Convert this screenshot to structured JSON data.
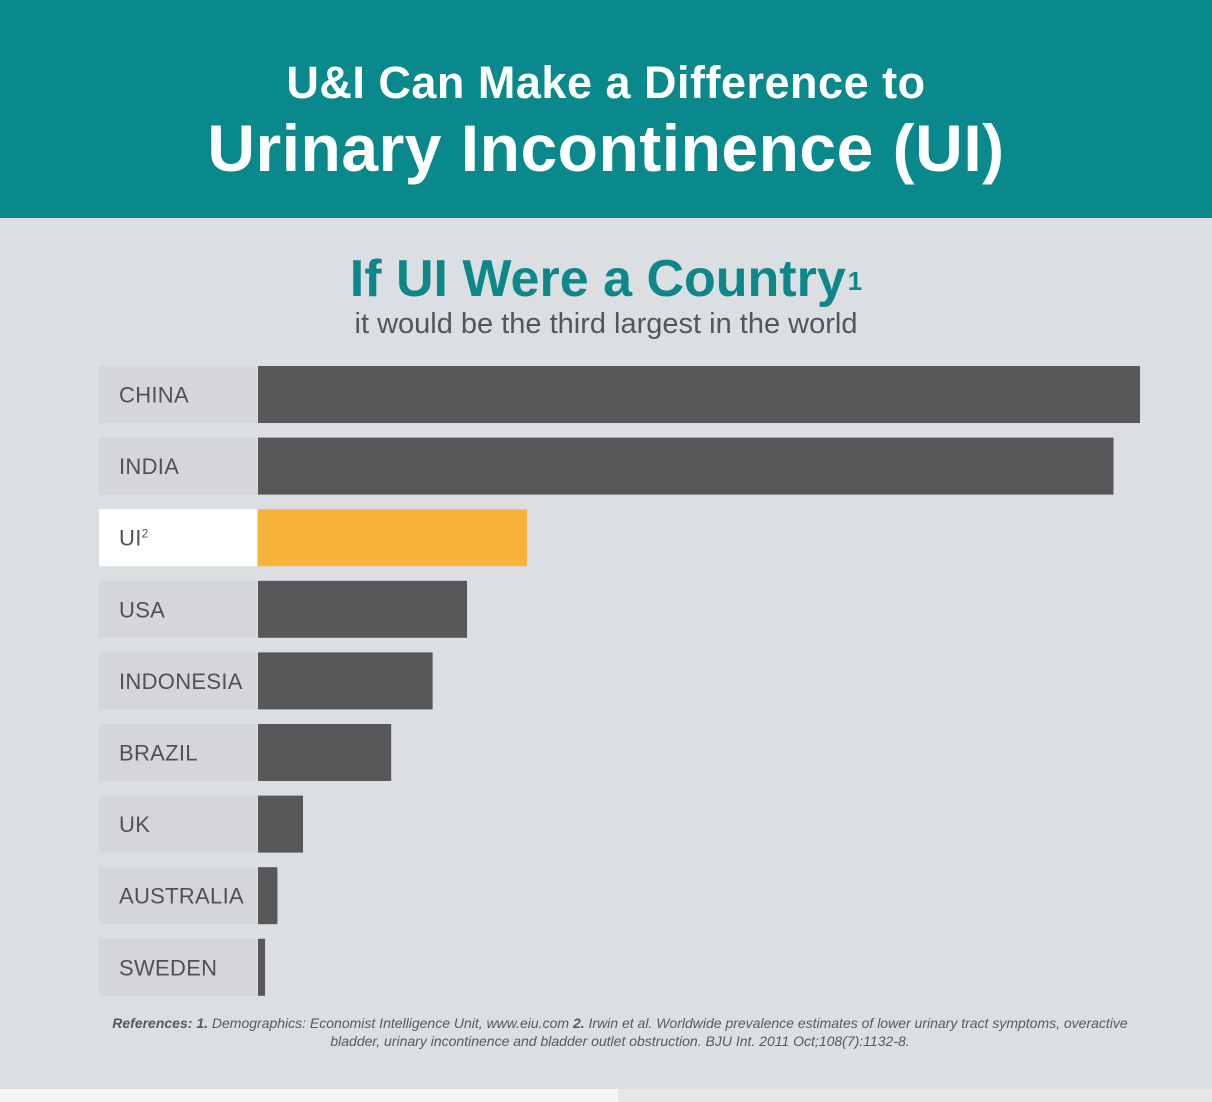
{
  "header": {
    "line1": "U&I Can Make a Difference to",
    "line2": "Urinary Incontinence (UI)"
  },
  "chart_data": {
    "type": "bar",
    "orientation": "horizontal",
    "title": "If UI Were a Country",
    "title_ref": "1",
    "subtitle": "it would be the third largest in the world",
    "categories": [
      {
        "label": "CHINA",
        "ref": ""
      },
      {
        "label": "INDIA",
        "ref": ""
      },
      {
        "label": "UI",
        "ref": "2"
      },
      {
        "label": "USA",
        "ref": ""
      },
      {
        "label": "INDONESIA",
        "ref": ""
      },
      {
        "label": "BRAZIL",
        "ref": ""
      },
      {
        "label": "UK",
        "ref": ""
      },
      {
        "label": "AUSTRALIA",
        "ref": ""
      },
      {
        "label": "SWEDEN",
        "ref": ""
      }
    ],
    "values": [
      1.0,
      0.97,
      0.305,
      0.237,
      0.198,
      0.151,
      0.051,
      0.022,
      0.008
    ],
    "highlight_index": 2,
    "xlim": [
      0,
      1
    ],
    "grid": false,
    "legend": "none",
    "colors": {
      "bar": "#58585a",
      "highlight_bar": "#f8b43a",
      "label_bg": "#d4d6d9",
      "highlight_label_bg": "#ffffff"
    }
  },
  "references": {
    "lead": "References:",
    "n1": "1.",
    "text1": "Demographics: Economist Intelligence Unit, www.eiu.com",
    "n2": "2.",
    "text2": "Irwin et al. Worldwide prevalence estimates of lower urinary tract symptoms, overactive bladder, urinary incontinence and bladder outlet obstruction. BJU Int. 2011 Oct;108(7):1132-8."
  },
  "colors": {
    "header_bg": "#09898c",
    "page_bg": "#dcdfe1",
    "title_color": "#0d878a"
  }
}
